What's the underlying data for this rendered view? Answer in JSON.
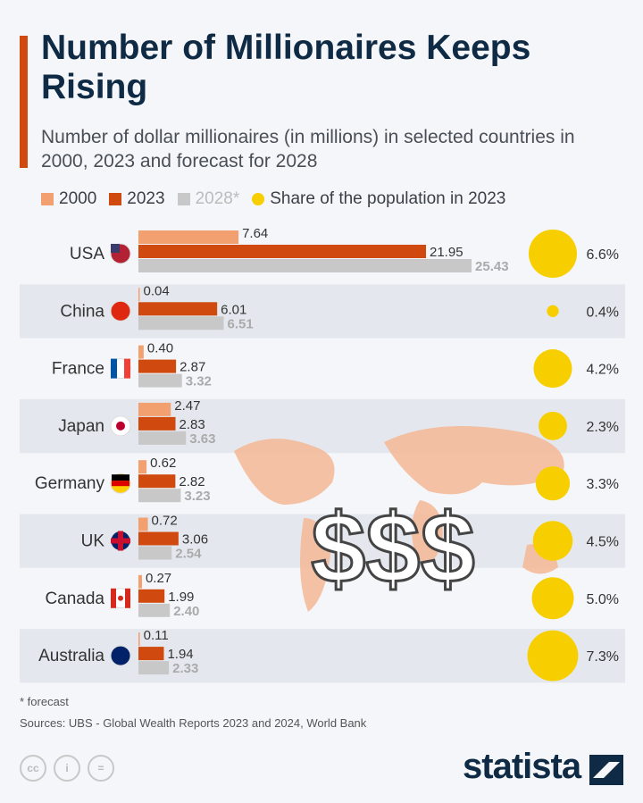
{
  "title": "Number of Millionaires Keeps Rising",
  "subtitle": "Number of dollar millionaires (in millions) in selected countries in 2000, 2023 and forecast for 2028",
  "colors": {
    "2000": "#f3a070",
    "2023": "#d04a0f",
    "2028": "#c8c8c8",
    "share": "#f7ce00",
    "accent": "#d04a0f"
  },
  "chart_data": {
    "type": "bar",
    "orientation": "horizontal",
    "categories": [
      "USA",
      "China",
      "France",
      "Japan",
      "Germany",
      "UK",
      "Canada",
      "Australia"
    ],
    "series": [
      {
        "name": "2000",
        "values": [
          7.64,
          0.04,
          0.4,
          2.47,
          0.62,
          0.72,
          0.27,
          0.11
        ]
      },
      {
        "name": "2023",
        "values": [
          21.95,
          6.01,
          2.87,
          2.83,
          2.82,
          3.06,
          1.99,
          1.94
        ]
      },
      {
        "name": "2028*",
        "values": [
          25.43,
          6.51,
          3.32,
          3.63,
          3.23,
          2.54,
          2.4,
          2.33
        ]
      }
    ],
    "share_series": {
      "name": "Share of the population in 2023",
      "values": [
        6.6,
        0.4,
        4.2,
        2.3,
        3.3,
        4.5,
        5.0,
        7.3
      ],
      "labels": [
        "6.6%",
        "0.4%",
        "4.2%",
        "2.3%",
        "3.3%",
        "4.5%",
        "5.0%",
        "7.3%"
      ]
    },
    "flags": [
      "us-flag-icon",
      "china-flag-icon",
      "france-flag-icon",
      "japan-flag-icon",
      "germany-flag-icon",
      "uk-flag-icon",
      "canada-flag-icon",
      "australia-flag-icon"
    ],
    "legend": [
      "2000",
      "2023",
      "2028*",
      "Share of the population in 2023"
    ],
    "legend_placement": "top",
    "grid": false
  },
  "illustration_text": "$$$",
  "footnote": "* forecast",
  "sources": "Sources: UBS - Global Wealth Reports 2023 and 2024, World Bank",
  "license_icons": [
    "cc-icon",
    "by-icon",
    "nd-icon"
  ],
  "license_labels": [
    "cc",
    "i",
    "="
  ],
  "brand": "statista"
}
